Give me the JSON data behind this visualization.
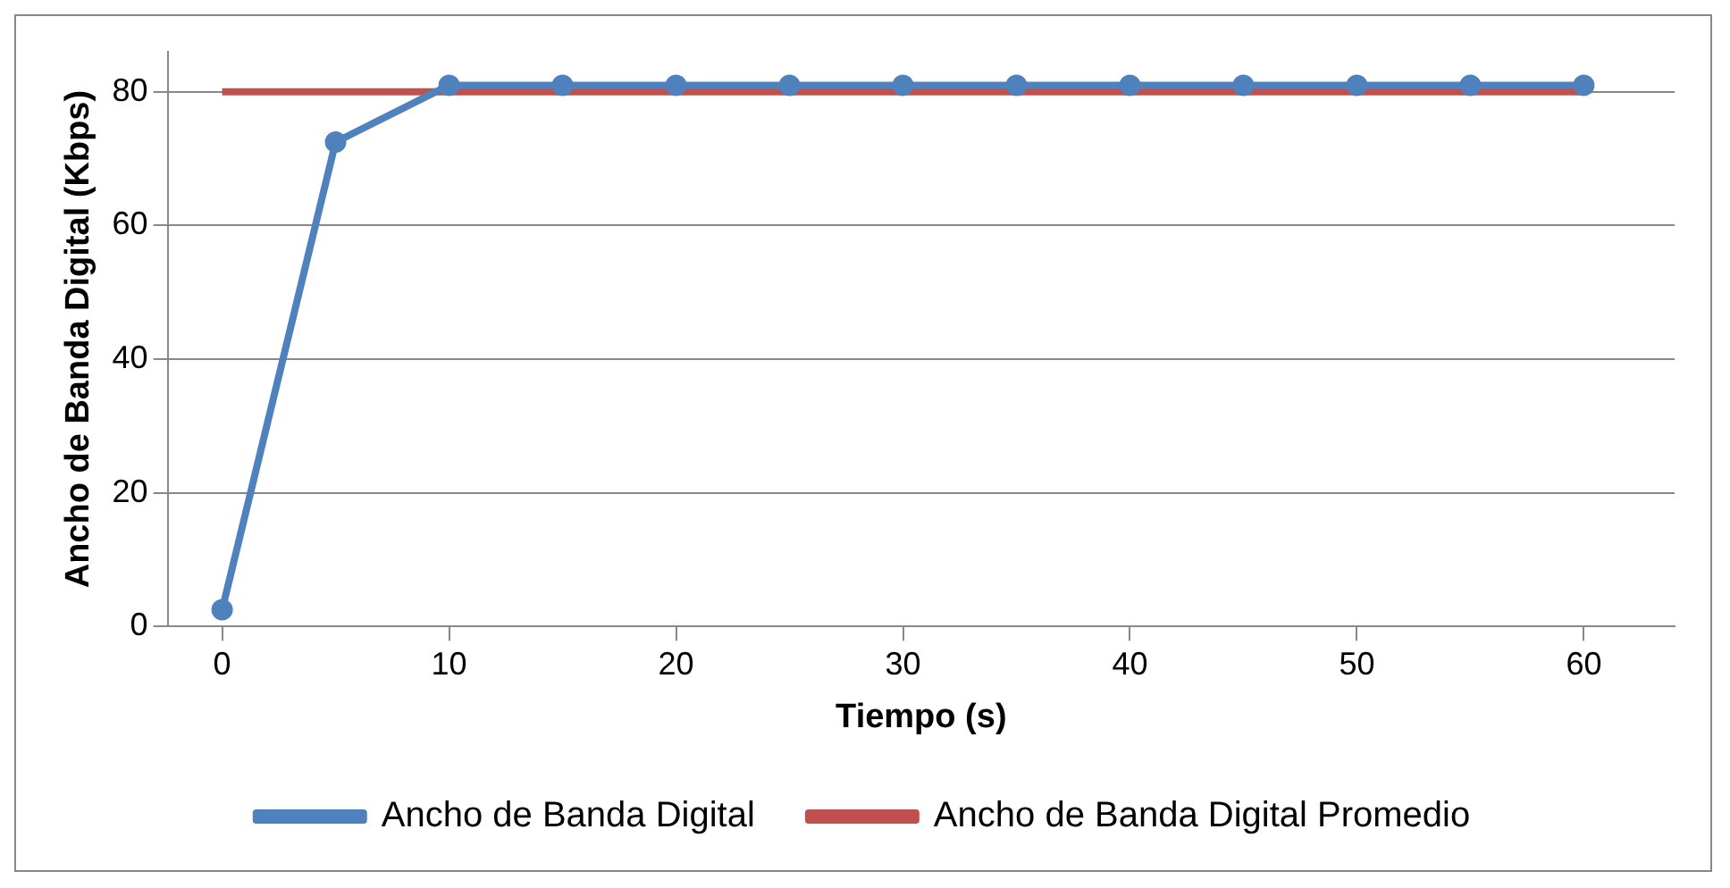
{
  "chart_data": {
    "type": "line",
    "xlabel": "Tiempo (s)",
    "ylabel": "Ancho de Banda Digital (Kbps)",
    "x": [
      0,
      5,
      10,
      15,
      20,
      25,
      30,
      35,
      40,
      45,
      50,
      55,
      60
    ],
    "series": [
      {
        "name": "Ancho de Banda Digital",
        "color": "#4f81bd",
        "marker": "circle",
        "values": [
          2.5,
          72.5,
          81,
          81,
          81,
          81,
          81,
          81,
          81,
          81,
          81,
          81,
          81
        ]
      },
      {
        "name": "Ancho de Banda Digital Promedio",
        "color": "#c0504d",
        "marker": "none",
        "values": [
          80,
          80,
          80,
          80,
          80,
          80,
          80,
          80,
          80,
          80,
          80,
          80,
          80
        ]
      }
    ],
    "xlim": [
      -2.4,
      64
    ],
    "xticks": [
      0,
      10,
      20,
      30,
      40,
      50,
      60
    ],
    "ylim": [
      0,
      86
    ],
    "yticks": [
      0,
      20,
      40,
      60,
      80
    ],
    "grid": "y",
    "legend": "bottom"
  }
}
